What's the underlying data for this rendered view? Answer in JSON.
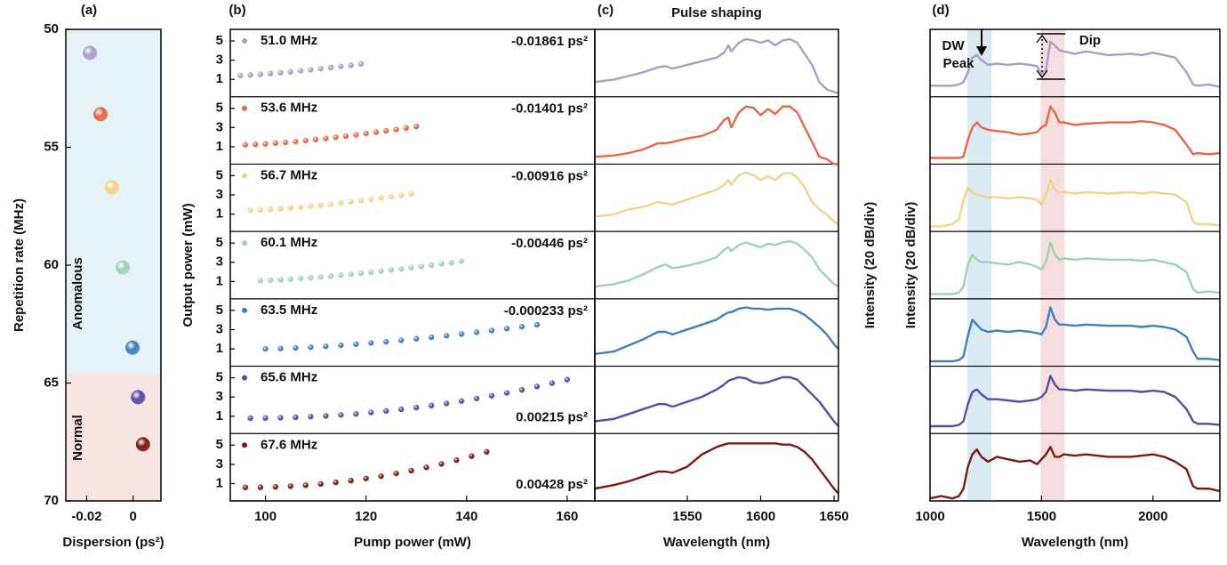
{
  "chart_data": [
    {
      "type": "scatter",
      "panel_label": "(a)",
      "xlabel": "Dispersion (ps²)",
      "ylabel": "Repetition rate (MHz)",
      "xlim": [
        -0.029,
        0.012
      ],
      "xticks": [
        -0.02,
        0
      ],
      "ylim": [
        70,
        50
      ],
      "yticks": [
        50,
        55,
        60,
        65,
        70
      ],
      "x": [
        -0.01861,
        -0.01401,
        -0.00916,
        -0.00446,
        -0.000233,
        0.00215,
        0.00428
      ],
      "values": [
        51.0,
        53.6,
        56.7,
        60.1,
        63.5,
        65.6,
        67.6
      ],
      "colors": [
        "#ab9dcb",
        "#e2694a",
        "#f4d28c",
        "#9ed3b2",
        "#3f7fc0",
        "#5b49a6",
        "#7c1a10"
      ],
      "regions": [
        {
          "label": "Anomalous",
          "ylim": [
            50,
            64.6
          ],
          "color": "#e5f2f6"
        },
        {
          "label": "Normal",
          "ylim": [
            64.6,
            70
          ],
          "color": "#f6e5e3"
        }
      ]
    },
    {
      "type": "scatter",
      "panel_label": "(b)",
      "xlabel": "Pump power (mW)",
      "ylabel": "Output power (mW)",
      "xlim": [
        93,
        165.5
      ],
      "xticks": [
        100,
        120,
        140,
        160
      ],
      "ylim": [
        -0.8,
        6.2
      ],
      "yticks": [
        1,
        3,
        5
      ],
      "series": [
        {
          "name": "51.0 MHz",
          "label": "-0.01861 ps²",
          "label_position": "top",
          "color": "#ab9dcb",
          "x": [
            95,
            97,
            99,
            101,
            103,
            105,
            107,
            109,
            111,
            113,
            115,
            117,
            119
          ],
          "values": [
            1.4,
            1.45,
            1.52,
            1.6,
            1.69,
            1.78,
            1.89,
            2.0,
            2.11,
            2.23,
            2.35,
            2.47,
            2.6
          ]
        },
        {
          "name": "53.6 MHz",
          "label": "-0.01401 ps²",
          "label_position": "top",
          "color": "#e2694a",
          "x": [
            96,
            98,
            100,
            102,
            104,
            106,
            108,
            110,
            112,
            114,
            116,
            118,
            120,
            122,
            124,
            126,
            128,
            130
          ],
          "values": [
            1.2,
            1.24,
            1.3,
            1.37,
            1.45,
            1.54,
            1.64,
            1.75,
            1.86,
            1.98,
            2.1,
            2.23,
            2.37,
            2.51,
            2.65,
            2.79,
            2.95,
            3.1
          ]
        },
        {
          "name": "56.7 MHz",
          "label": "-0.00916 ps²",
          "label_position": "top",
          "color": "#f4d28c",
          "x": [
            97,
            99,
            101,
            103,
            105,
            107,
            109,
            111,
            113,
            115,
            117,
            119,
            121,
            123,
            125,
            127,
            129
          ],
          "values": [
            1.4,
            1.44,
            1.49,
            1.56,
            1.64,
            1.73,
            1.83,
            1.93,
            2.04,
            2.16,
            2.28,
            2.41,
            2.54,
            2.67,
            2.81,
            2.95,
            3.1
          ]
        },
        {
          "name": "60.1 MHz",
          "label": "-0.00446 ps²",
          "label_position": "top",
          "color": "#9ed3b2",
          "x": [
            99,
            101,
            103,
            105,
            107,
            109,
            111,
            113,
            115,
            117,
            119,
            121,
            123,
            125,
            127,
            129,
            131,
            133,
            135,
            137,
            139
          ],
          "values": [
            1.1,
            1.13,
            1.18,
            1.24,
            1.31,
            1.39,
            1.47,
            1.56,
            1.65,
            1.75,
            1.86,
            1.97,
            2.08,
            2.19,
            2.31,
            2.44,
            2.56,
            2.69,
            2.83,
            2.96,
            3.1
          ]
        },
        {
          "name": "63.5 MHz",
          "label": "-0.000233 ps²",
          "label_position": "top",
          "color": "#3f7fc0",
          "x": [
            100,
            103,
            106,
            109,
            112,
            115,
            118,
            121,
            124,
            127,
            130,
            133,
            136,
            139,
            142,
            145,
            148,
            151,
            154
          ],
          "values": [
            1.0,
            1.03,
            1.09,
            1.17,
            1.26,
            1.37,
            1.48,
            1.61,
            1.74,
            1.89,
            2.04,
            2.2,
            2.36,
            2.54,
            2.72,
            2.9,
            3.1,
            3.3,
            3.5
          ]
        },
        {
          "name": "65.6 MHz",
          "label": "0.00215 ps²",
          "label_position": "bottom",
          "color": "#5b49a6",
          "x": [
            97,
            100,
            103,
            106,
            109,
            112,
            115,
            118,
            121,
            124,
            127,
            130,
            133,
            136,
            139,
            142,
            145,
            148,
            151,
            154,
            157,
            160
          ],
          "values": [
            0.8,
            0.81,
            0.84,
            0.88,
            0.95,
            1.03,
            1.13,
            1.24,
            1.38,
            1.54,
            1.71,
            1.9,
            2.11,
            2.33,
            2.58,
            2.84,
            3.12,
            3.42,
            3.74,
            4.08,
            4.43,
            4.8
          ]
        },
        {
          "name": "67.6 MHz",
          "label": "0.00428 ps²",
          "label_position": "bottom",
          "color": "#7c1a10",
          "x": [
            96,
            99,
            102,
            105,
            108,
            111,
            114,
            117,
            120,
            123,
            126,
            129,
            132,
            135,
            138,
            141,
            144
          ],
          "values": [
            0.6,
            0.61,
            0.66,
            0.73,
            0.83,
            0.96,
            1.12,
            1.31,
            1.53,
            1.77,
            2.05,
            2.35,
            2.68,
            3.04,
            3.43,
            3.85,
            4.3
          ]
        }
      ]
    },
    {
      "type": "line",
      "panel_label": "(c)",
      "title": "Pulse shaping",
      "xlabel": "Wavelength (nm)",
      "ylabel": "Intensity (20 dB/div)",
      "xlim": [
        1487,
        1653
      ],
      "xticks": [
        1550,
        1600,
        1650
      ],
      "ylim": [
        -50,
        5
      ],
      "x": [
        1487,
        1500,
        1510,
        1520,
        1530,
        1535,
        1540,
        1550,
        1560,
        1570,
        1575,
        1578,
        1580,
        1585,
        1590,
        1595,
        1600,
        1605,
        1610,
        1615,
        1620,
        1625,
        1630,
        1635,
        1640,
        1645,
        1650,
        1653
      ],
      "series": [
        {
          "color": "#ab9dcb",
          "values": [
            -38,
            -36,
            -33,
            -30,
            -26,
            -25,
            -27,
            -24,
            -21,
            -18,
            -14,
            -8,
            -13,
            -6,
            -3,
            -4,
            -6,
            -4,
            -8,
            -4,
            -3,
            -6,
            -15,
            -24,
            -38,
            -44,
            -46,
            -47
          ]
        },
        {
          "color": "#e2694a",
          "values": [
            -44,
            -43,
            -41,
            -38,
            -33,
            -33,
            -32,
            -29,
            -27,
            -22,
            -14,
            -12,
            -20,
            -8,
            -3,
            -4,
            -10,
            -5,
            -9,
            -3,
            -3,
            -8,
            -20,
            -32,
            -44,
            -46,
            -50,
            -50
          ]
        },
        {
          "color": "#f4d28c",
          "values": [
            -38,
            -36,
            -32,
            -30,
            -26,
            -27,
            -28,
            -24,
            -20,
            -16,
            -12,
            -8,
            -12,
            -4,
            -2,
            -4,
            -8,
            -5,
            -8,
            -3,
            -2,
            -6,
            -14,
            -26,
            -32,
            -36,
            -42,
            -44
          ]
        },
        {
          "color": "#9ed3b2",
          "values": [
            -40,
            -38,
            -35,
            -30,
            -24,
            -22,
            -25,
            -23,
            -20,
            -16,
            -10,
            -8,
            -11,
            -6,
            -4,
            -6,
            -8,
            -5,
            -6,
            -4,
            -3,
            -5,
            -10,
            -16,
            -26,
            -32,
            -38,
            -40
          ]
        },
        {
          "color": "#3f7fc0",
          "values": [
            -40,
            -38,
            -33,
            -28,
            -22,
            -22,
            -24,
            -20,
            -16,
            -12,
            -8,
            -6,
            -6,
            -3,
            -2,
            -3,
            -3,
            -4,
            -3,
            -3,
            -3,
            -5,
            -8,
            -13,
            -18,
            -24,
            -32,
            -36
          ]
        },
        {
          "color": "#5b49a6",
          "values": [
            -40,
            -38,
            -34,
            -30,
            -26,
            -26,
            -28,
            -24,
            -20,
            -14,
            -10,
            -7,
            -6,
            -4,
            -5,
            -8,
            -9,
            -8,
            -6,
            -4,
            -4,
            -6,
            -12,
            -18,
            -24,
            -32,
            -40,
            -44
          ]
        },
        {
          "color": "#7c1a10",
          "values": [
            -40,
            -37,
            -34,
            -30,
            -26,
            -26,
            -27,
            -22,
            -12,
            -6,
            -4,
            -3,
            -3,
            -3,
            -3,
            -3,
            -3,
            -3,
            -3,
            -4,
            -4,
            -6,
            -10,
            -16,
            -24,
            -32,
            -40,
            -44
          ]
        }
      ]
    },
    {
      "type": "line",
      "panel_label": "(d)",
      "xlabel": "Wavelength (nm)",
      "ylabel": "Intensity (20 dB/div)",
      "xlim": [
        1000,
        2300
      ],
      "xticks": [
        1000,
        1500,
        2000
      ],
      "ylim": [
        -50,
        5
      ],
      "bands": [
        {
          "xlim": [
            1168,
            1276
          ],
          "color": "#d9eaf2"
        },
        {
          "xlim": [
            1496,
            1604
          ],
          "color": "#f4dede"
        }
      ],
      "annotations": [
        "DW",
        "Peak",
        "Dip"
      ],
      "x": [
        1000,
        1050,
        1100,
        1130,
        1150,
        1170,
        1190,
        1210,
        1230,
        1260,
        1300,
        1350,
        1400,
        1450,
        1480,
        1500,
        1520,
        1540,
        1560,
        1580,
        1600,
        1650,
        1700,
        1800,
        1900,
        1950,
        2000,
        2050,
        2100,
        2150,
        2180,
        2200,
        2250,
        2300
      ],
      "series": [
        {
          "color": "#ab9dcb",
          "values": [
            -41,
            -41,
            -41,
            -40,
            -38,
            -30,
            -18,
            -16,
            -20,
            -24,
            -23,
            -24,
            -23,
            -24,
            -25,
            -32,
            -28,
            -5,
            -8,
            -12,
            -13,
            -15,
            -13,
            -16,
            -15,
            -16,
            -14,
            -16,
            -18,
            -30,
            -40,
            -41,
            -40,
            -42
          ]
        },
        {
          "color": "#e2694a",
          "values": [
            -45,
            -45,
            -45,
            -45,
            -44,
            -30,
            -20,
            -16,
            -20,
            -22,
            -23,
            -24,
            -26,
            -25,
            -24,
            -20,
            -18,
            -3,
            -8,
            -16,
            -16,
            -18,
            -17,
            -16,
            -16,
            -15,
            -16,
            -18,
            -22,
            -34,
            -42,
            -41,
            -42,
            -41
          ]
        },
        {
          "color": "#f4d28c",
          "values": [
            -46,
            -46,
            -44,
            -40,
            -25,
            -14,
            -18,
            -20,
            -21,
            -22,
            -22,
            -23,
            -22,
            -23,
            -24,
            -28,
            -20,
            -8,
            -16,
            -18,
            -18,
            -19,
            -18,
            -19,
            -18,
            -19,
            -18,
            -19,
            -20,
            -26,
            -42,
            -44,
            -44,
            -45
          ]
        },
        {
          "color": "#9ed3b2",
          "values": [
            -46,
            -46,
            -46,
            -45,
            -40,
            -22,
            -14,
            -18,
            -20,
            -20,
            -21,
            -22,
            -20,
            -22,
            -24,
            -26,
            -20,
            -4,
            -14,
            -18,
            -17,
            -18,
            -17,
            -18,
            -18,
            -19,
            -18,
            -20,
            -22,
            -28,
            -42,
            -45,
            -44,
            -45
          ]
        },
        {
          "color": "#3f7fc0",
          "values": [
            -46,
            -46,
            -46,
            -45,
            -42,
            -25,
            -12,
            -16,
            -20,
            -22,
            -21,
            -22,
            -21,
            -22,
            -23,
            -24,
            -18,
            -2,
            -12,
            -16,
            -16,
            -17,
            -16,
            -17,
            -17,
            -18,
            -17,
            -18,
            -20,
            -26,
            -38,
            -44,
            -44,
            -45
          ]
        },
        {
          "color": "#5b49a6",
          "values": [
            -44,
            -44,
            -44,
            -43,
            -40,
            -26,
            -16,
            -14,
            -18,
            -22,
            -22,
            -23,
            -24,
            -23,
            -22,
            -20,
            -16,
            -3,
            -10,
            -14,
            -14,
            -15,
            -14,
            -15,
            -15,
            -16,
            -15,
            -16,
            -20,
            -30,
            -40,
            -42,
            -42,
            -43
          ]
        },
        {
          "color": "#7c1a10",
          "values": [
            -48,
            -46,
            -48,
            -46,
            -40,
            -22,
            -12,
            -8,
            -14,
            -18,
            -14,
            -16,
            -18,
            -17,
            -20,
            -16,
            -12,
            -6,
            -14,
            -14,
            -12,
            -13,
            -12,
            -14,
            -14,
            -13,
            -12,
            -14,
            -18,
            -24,
            -38,
            -40,
            -40,
            -42
          ]
        }
      ]
    }
  ]
}
